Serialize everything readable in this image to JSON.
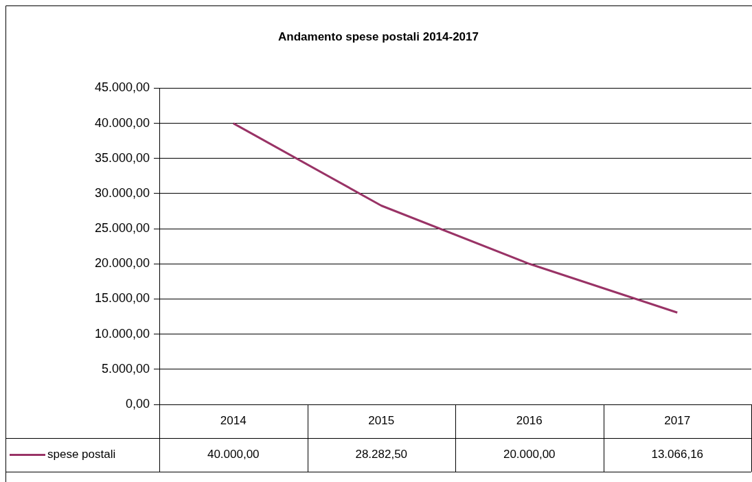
{
  "chart_data": {
    "type": "line",
    "title": "Andamento spese postali 2014-2017",
    "categories": [
      "2014",
      "2015",
      "2016",
      "2017"
    ],
    "series": [
      {
        "name": "spese postali",
        "color": "#993366",
        "values": [
          40000,
          28282.5,
          20000,
          13066.16
        ],
        "value_labels": [
          "40.000,00",
          "28.282,50",
          "20.000,00",
          "13.066,16"
        ]
      }
    ],
    "ylim": [
      0,
      45000
    ],
    "yticks": [
      {
        "value": 0,
        "label": "0,00"
      },
      {
        "value": 5000,
        "label": "5.000,00"
      },
      {
        "value": 10000,
        "label": "10.000,00"
      },
      {
        "value": 15000,
        "label": "15.000,00"
      },
      {
        "value": 20000,
        "label": "20.000,00"
      },
      {
        "value": 25000,
        "label": "25.000,00"
      },
      {
        "value": 30000,
        "label": "30.000,00"
      },
      {
        "value": 35000,
        "label": "35.000,00"
      },
      {
        "value": 40000,
        "label": "40.000,00"
      },
      {
        "value": 45000,
        "label": "45.000,00"
      }
    ],
    "grid": "y",
    "legend": "bottom left",
    "marker": "none",
    "line_style": "solid"
  }
}
